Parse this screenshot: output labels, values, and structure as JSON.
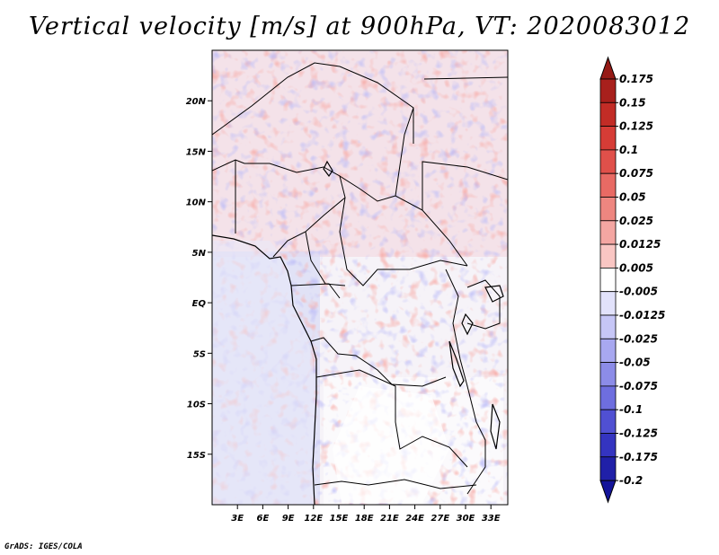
{
  "title": "Vertical velocity [m/s] at 900hPa, VT: 2020083012",
  "credit": "GrADS: IGES/COLA",
  "map": {
    "lat_range": [
      -20,
      25
    ],
    "lon_range": [
      0,
      35
    ],
    "lat_labels": [
      {
        "lat": 20,
        "label": "20N"
      },
      {
        "lat": 15,
        "label": "15N"
      },
      {
        "lat": 10,
        "label": "10N"
      },
      {
        "lat": 5,
        "label": "5N"
      },
      {
        "lat": 0,
        "label": "EQ"
      },
      {
        "lat": -5,
        "label": "5S"
      },
      {
        "lat": -10,
        "label": "10S"
      },
      {
        "lat": -15,
        "label": "15S"
      }
    ],
    "lon_labels": [
      {
        "lon": 3,
        "label": "3E"
      },
      {
        "lon": 6,
        "label": "6E"
      },
      {
        "lon": 9,
        "label": "9E"
      },
      {
        "lon": 12,
        "label": "12E"
      },
      {
        "lon": 15,
        "label": "15E"
      },
      {
        "lon": 18,
        "label": "18E"
      },
      {
        "lon": 21,
        "label": "21E"
      },
      {
        "lon": 24,
        "label": "24E"
      },
      {
        "lon": 27,
        "label": "27E"
      },
      {
        "lon": 30,
        "label": "30E"
      },
      {
        "lon": 33,
        "label": "33E"
      }
    ]
  },
  "colorbar": {
    "levels": [
      {
        "label": "0.175",
        "color": "#a8201c"
      },
      {
        "label": "0.15",
        "color": "#c22c26"
      },
      {
        "label": "0.125",
        "color": "#d63c36"
      },
      {
        "label": "0.1",
        "color": "#e0504a"
      },
      {
        "label": "0.075",
        "color": "#e86a64"
      },
      {
        "label": "0.05",
        "color": "#ee8680"
      },
      {
        "label": "0.025",
        "color": "#f4a6a2"
      },
      {
        "label": "0.0125",
        "color": "#f9c6c3"
      },
      {
        "label": "0.005",
        "color": "#fde4e2"
      },
      {
        "label": "-0.005",
        "color": "#ffffff"
      },
      {
        "label": "-0.0125",
        "color": "#e2e2fb"
      },
      {
        "label": "-0.025",
        "color": "#c6c6f6"
      },
      {
        "label": "-0.05",
        "color": "#a8a8f0"
      },
      {
        "label": "-0.075",
        "color": "#8c8ce8"
      },
      {
        "label": "-0.1",
        "color": "#6e6edf"
      },
      {
        "label": "-0.125",
        "color": "#5050d2"
      },
      {
        "label": "-0.175",
        "color": "#3434c0"
      },
      {
        "label": "-0.2",
        "color": "#2020a8"
      }
    ],
    "top_triangle_color": "#961a16",
    "bottom_triangle_color": "#14149a",
    "mid_band_color": "#ffffff"
  }
}
